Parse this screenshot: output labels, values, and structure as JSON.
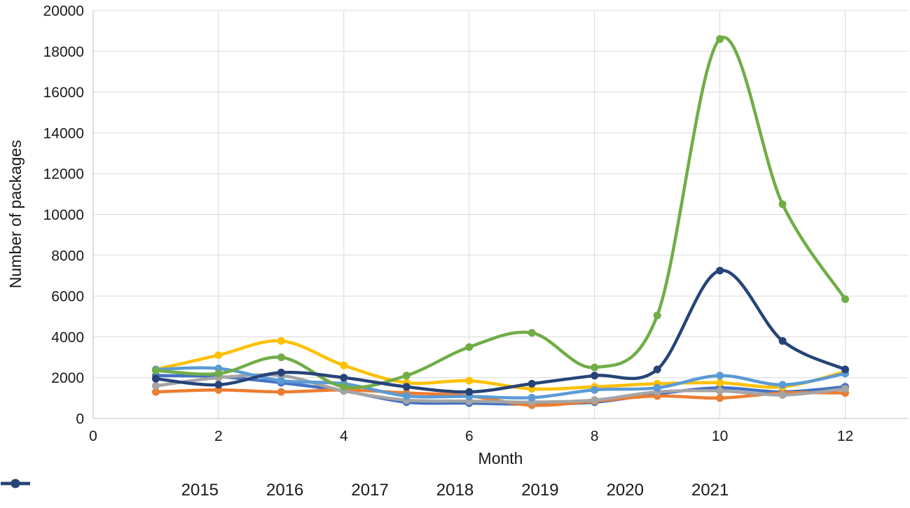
{
  "chart_data": {
    "type": "line",
    "title": "",
    "xlabel": "Month",
    "ylabel": "Number of packages",
    "x": [
      1,
      2,
      3,
      4,
      5,
      6,
      7,
      8,
      9,
      10,
      11,
      12
    ],
    "xlim": [
      0,
      13
    ],
    "x_tick_values": [
      0,
      2,
      4,
      6,
      8,
      10,
      12
    ],
    "ylim": [
      0,
      20000
    ],
    "y_tick_step": 2000,
    "grid": true,
    "smooth_lines": true,
    "markers": true,
    "legend_position": "bottom",
    "series": [
      {
        "name": "2015",
        "color": "#4472C4",
        "values": [
          2100,
          2050,
          1750,
          1350,
          800,
          750,
          700,
          800,
          1200,
          1500,
          1300,
          1550
        ]
      },
      {
        "name": "2016",
        "color": "#ED7D31",
        "values": [
          1300,
          1400,
          1300,
          1400,
          1250,
          1100,
          650,
          850,
          1100,
          1000,
          1250,
          1250
        ]
      },
      {
        "name": "2017",
        "color": "#A5A5A5",
        "values": [
          1600,
          2000,
          2100,
          1350,
          900,
          850,
          800,
          900,
          1300,
          1350,
          1150,
          1450
        ]
      },
      {
        "name": "2018",
        "color": "#FFC000",
        "values": [
          2400,
          3100,
          3800,
          2600,
          1750,
          1850,
          1450,
          1550,
          1700,
          1750,
          1550,
          2300
        ]
      },
      {
        "name": "2019",
        "color": "#5B9BD5",
        "values": [
          2400,
          2450,
          1850,
          1700,
          1100,
          1080,
          1020,
          1400,
          1500,
          2100,
          1650,
          2200
        ]
      },
      {
        "name": "2020",
        "color": "#70AD47",
        "values": [
          2350,
          2200,
          3000,
          1550,
          2100,
          3500,
          4200,
          2500,
          5050,
          18600,
          10500,
          5850
        ]
      },
      {
        "name": "2021",
        "color": "#264478",
        "values": [
          1950,
          1650,
          2250,
          2000,
          1550,
          1300,
          1700,
          2100,
          2400,
          7250,
          3800,
          2400
        ]
      }
    ]
  },
  "colors": {
    "gridline": "#D9D9D9",
    "axis_line": "#BFBFBF",
    "text": "#1A1A1A",
    "background": "#FFFFFF"
  }
}
